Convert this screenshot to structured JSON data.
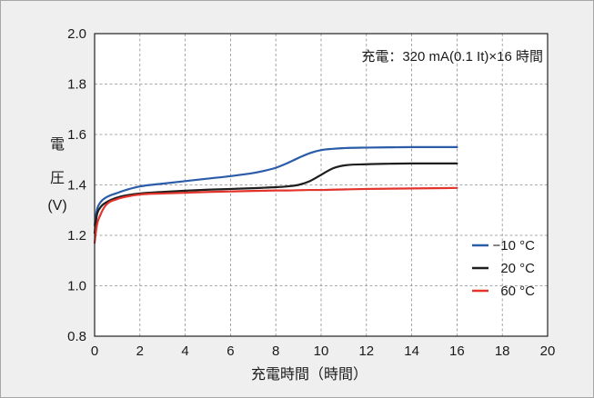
{
  "chart_data": {
    "type": "line",
    "annotation": "充電：320 mA(0.1 It)×16 時間",
    "xlabel": "充電時間（時間）",
    "ylabel": [
      "電",
      "圧",
      "(V)"
    ],
    "xlim": [
      0,
      20
    ],
    "ylim": [
      0.8,
      2.0
    ],
    "xticks": [
      "0",
      "2",
      "4",
      "6",
      "8",
      "10",
      "12",
      "14",
      "16",
      "18",
      "20"
    ],
    "yticks": [
      "0.8",
      "1.0",
      "1.2",
      "1.4",
      "1.6",
      "1.8",
      "2.0"
    ],
    "grid": true,
    "legend": "lower-right",
    "x": [
      0,
      0.1,
      0.25,
      0.5,
      1,
      1.5,
      2,
      3,
      4,
      5,
      6,
      7,
      7.5,
      8,
      8.5,
      9,
      9.5,
      10,
      10.5,
      11,
      12,
      13,
      14,
      15,
      16
    ],
    "series": [
      {
        "name": "−10 °C",
        "color": "#2b5ca8",
        "values": [
          1.24,
          1.3,
          1.33,
          1.35,
          1.368,
          1.383,
          1.394,
          1.405,
          1.415,
          1.425,
          1.435,
          1.447,
          1.456,
          1.468,
          1.486,
          1.507,
          1.526,
          1.538,
          1.543,
          1.546,
          1.548,
          1.549,
          1.55,
          1.55,
          1.55
        ]
      },
      {
        "name": "20 °C",
        "color": "#1e1e1e",
        "values": [
          1.21,
          1.28,
          1.31,
          1.33,
          1.35,
          1.36,
          1.366,
          1.372,
          1.377,
          1.381,
          1.384,
          1.387,
          1.389,
          1.391,
          1.394,
          1.4,
          1.415,
          1.44,
          1.465,
          1.477,
          1.482,
          1.484,
          1.485,
          1.485,
          1.485
        ]
      },
      {
        "name": "60 °C",
        "color": "#e3342c",
        "values": [
          1.17,
          1.24,
          1.28,
          1.32,
          1.344,
          1.355,
          1.362,
          1.366,
          1.369,
          1.372,
          1.374,
          1.376,
          1.377,
          1.378,
          1.378,
          1.379,
          1.38,
          1.38,
          1.381,
          1.382,
          1.384,
          1.385,
          1.386,
          1.387,
          1.388
        ]
      }
    ]
  }
}
